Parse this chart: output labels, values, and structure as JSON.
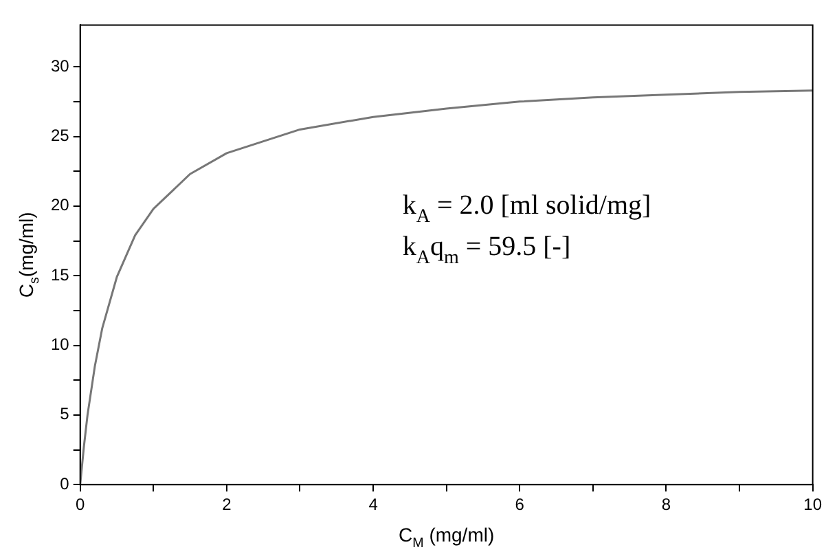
{
  "chart_data": {
    "type": "line",
    "xlabel": "C$_{M}$ (mg/ml)",
    "ylabel": "C$_{s}$(mg/ml)",
    "annotations": [
      "k$_{A}$ = 2.0 [ml solid/mg]",
      "k$_{A}$q$_{m}$ = 59.5 [-]"
    ],
    "x": [
      0,
      0.05,
      0.1,
      0.2,
      0.3,
      0.5,
      0.75,
      1,
      1.5,
      2,
      3,
      4,
      5,
      6,
      7,
      8,
      9,
      10
    ],
    "series": [
      {
        "color": "#777777",
        "values": [
          0,
          2.7,
          5.0,
          8.5,
          11.2,
          14.9,
          17.9,
          19.8,
          22.3,
          23.8,
          25.5,
          26.4,
          27.0,
          27.5,
          27.8,
          28.0,
          28.2,
          28.3
        ]
      }
    ],
    "xlim": [
      0,
      10
    ],
    "ylim": [
      0,
      33
    ],
    "xticks": [
      0,
      {
        "value": 1,
        "label": null
      },
      2,
      {
        "value": 3,
        "label": null
      },
      4,
      {
        "value": 5,
        "label": null
      },
      6,
      {
        "value": 7,
        "label": null
      },
      8,
      {
        "value": 9,
        "label": null
      },
      10
    ],
    "yticks": [
      0,
      {
        "value": 2.5,
        "label": null
      },
      5,
      {
        "value": 7.5,
        "label": null
      },
      10,
      {
        "value": 12.5,
        "label": null
      },
      15,
      {
        "value": 17.5,
        "label": null
      },
      20,
      {
        "value": 22.5,
        "label": null
      },
      25,
      {
        "value": 27.5,
        "label": null
      },
      30
    ],
    "grid": false,
    "legend": false,
    "marker": "none",
    "line_style": "solid"
  }
}
